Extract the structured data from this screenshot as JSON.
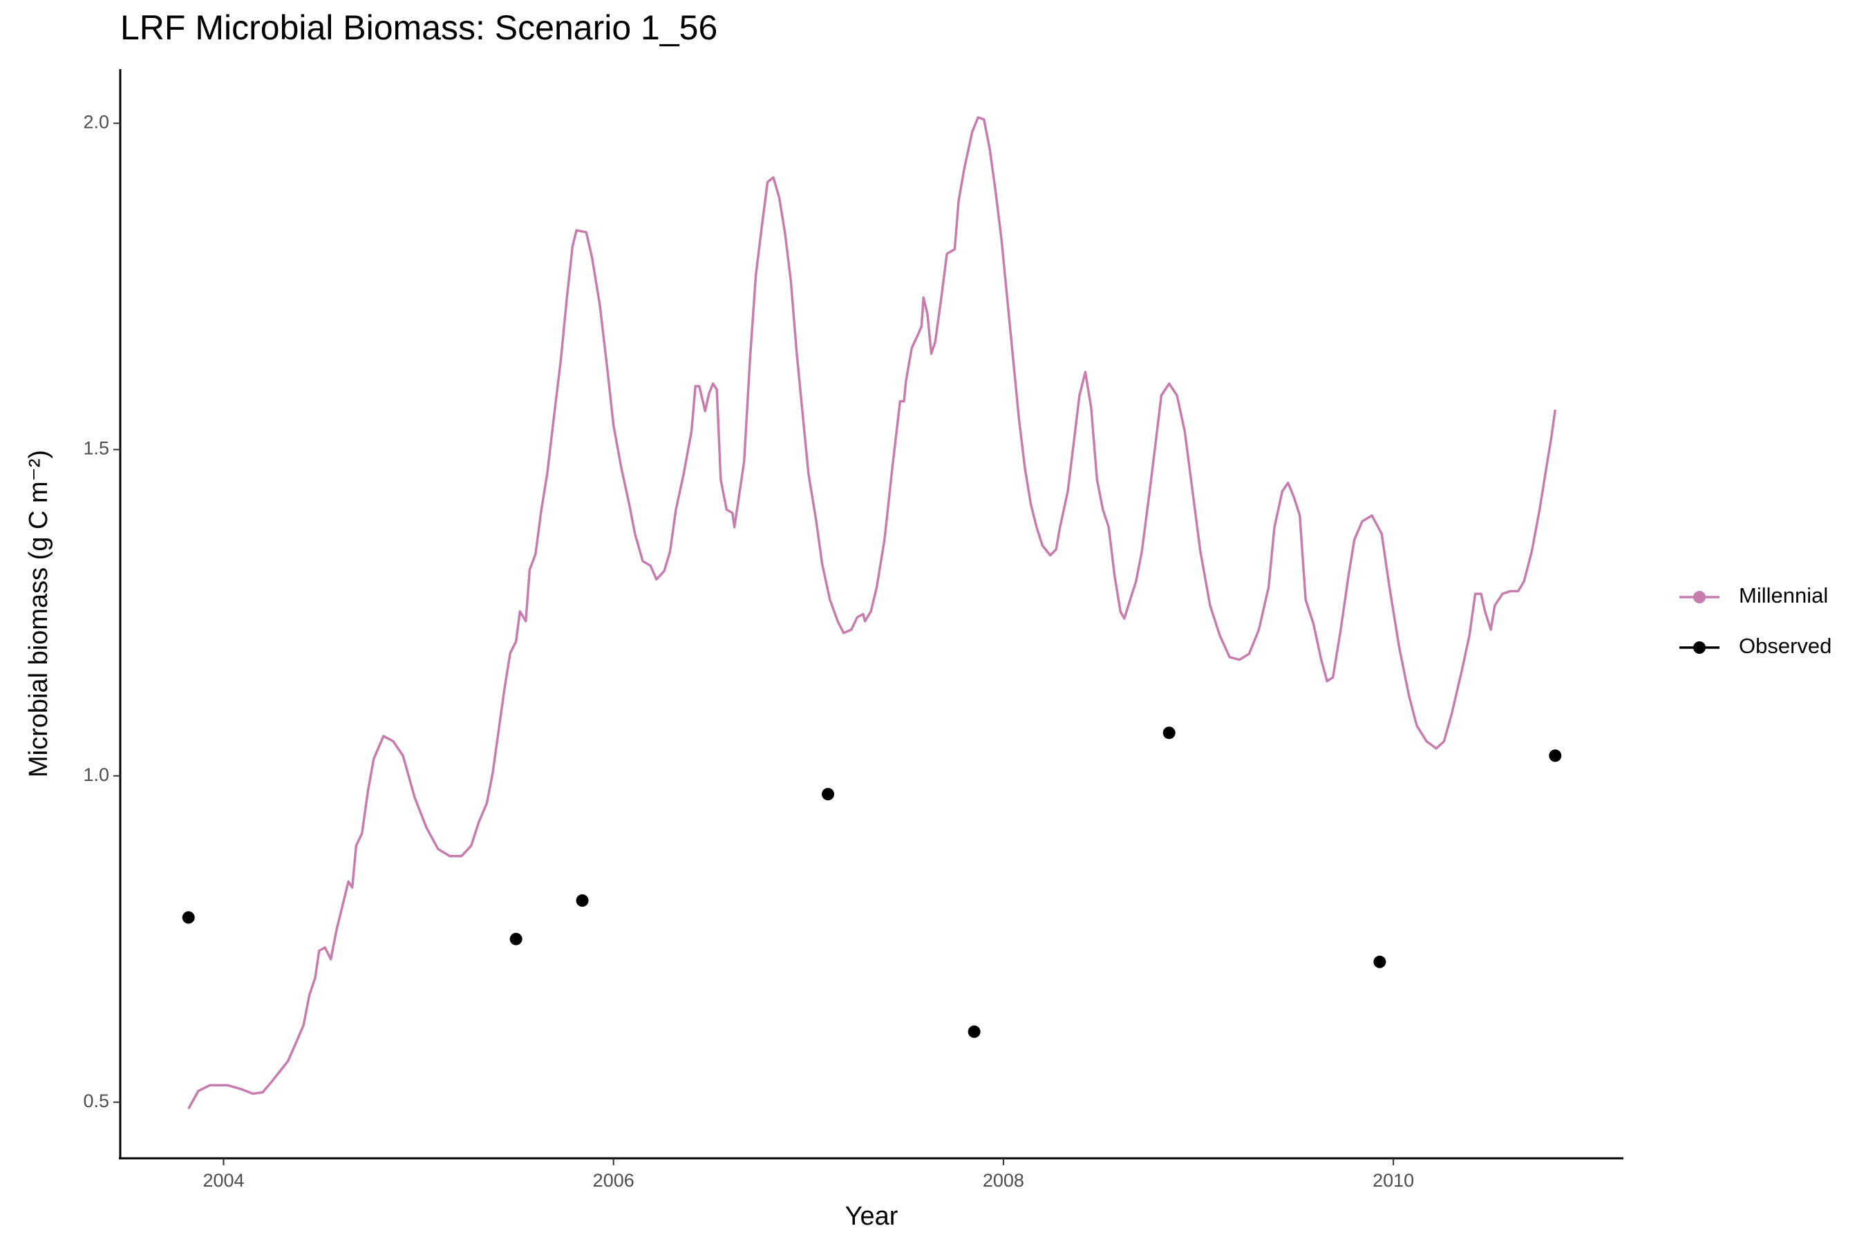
{
  "chart_data": {
    "type": "line",
    "title": "LRF Microbial Biomass: Scenario  1_56",
    "x_label": "Year",
    "y_label": "Microbial biomass (g C m⁻²)",
    "xlim": [
      2003.47,
      2011.18
    ],
    "ylim": [
      0.414,
      2.083
    ],
    "xticks": [
      2004,
      2006,
      2008,
      2010
    ],
    "yticks": [
      0.5,
      {
        "value": 1,
        "label": "1.0"
      },
      1.5,
      {
        "value": 2,
        "label": "2.0"
      }
    ],
    "grid": false,
    "legend": "right",
    "series": [
      {
        "name": "Millennial",
        "color": "#c77cae",
        "mode": "line",
        "x": [
          2003.82,
          2003.87,
          2003.93,
          2004.02,
          2004.09,
          2004.15,
          2004.2,
          2004.24,
          2004.28,
          2004.33,
          2004.37,
          2004.41,
          2004.44,
          2004.47,
          2004.49,
          2004.52,
          2004.55,
          2004.58,
          2004.61,
          2004.64,
          2004.66,
          2004.68,
          2004.71,
          2004.74,
          2004.77,
          2004.82,
          2004.87,
          2004.92,
          2004.98,
          2005.04,
          2005.1,
          2005.16,
          2005.22,
          2005.27,
          2005.31,
          2005.35,
          2005.38,
          2005.41,
          2005.44,
          2005.47,
          2005.5,
          2005.52,
          2005.55,
          2005.57,
          2005.6,
          2005.63,
          2005.66,
          2005.7,
          2005.73,
          2005.76,
          2005.79,
          2005.81,
          2005.86,
          2005.89,
          2005.93,
          2005.97,
          2006.0,
          2006.04,
          2006.08,
          2006.11,
          2006.15,
          2006.19,
          2006.22,
          2006.26,
          2006.29,
          2006.32,
          2006.36,
          2006.4,
          2006.42,
          2006.44,
          2006.47,
          2006.49,
          2006.51,
          2006.53,
          2006.55,
          2006.58,
          2006.61,
          2006.62,
          2006.64,
          2006.67,
          2006.7,
          2006.73,
          2006.76,
          2006.79,
          2006.82,
          2006.85,
          2006.88,
          2006.91,
          2006.94,
          2006.97,
          2007.0,
          2007.04,
          2007.07,
          2007.11,
          2007.15,
          2007.18,
          2007.22,
          2007.25,
          2007.28,
          2007.29,
          2007.32,
          2007.35,
          2007.39,
          2007.43,
          2007.47,
          2007.49,
          2007.5,
          2007.53,
          2007.56,
          2007.58,
          2007.59,
          2007.61,
          2007.63,
          2007.65,
          2007.68,
          2007.71,
          2007.75,
          2007.77,
          2007.8,
          2007.84,
          2007.87,
          2007.9,
          2007.93,
          2007.96,
          2007.99,
          2008.02,
          2008.05,
          2008.08,
          2008.11,
          2008.14,
          2008.17,
          2008.2,
          2008.24,
          2008.27,
          2008.29,
          2008.33,
          2008.36,
          2008.39,
          2008.42,
          2008.45,
          2008.48,
          2008.51,
          2008.54,
          2008.57,
          2008.6,
          2008.62,
          2008.65,
          2008.68,
          2008.71,
          2008.75,
          2008.78,
          2008.81,
          2008.85,
          2008.89,
          2008.93,
          2008.97,
          2009.01,
          2009.06,
          2009.11,
          2009.16,
          2009.21,
          2009.26,
          2009.31,
          2009.36,
          2009.39,
          2009.43,
          2009.46,
          2009.49,
          2009.52,
          2009.55,
          2009.59,
          2009.63,
          2009.66,
          2009.69,
          2009.73,
          2009.77,
          2009.8,
          2009.84,
          2009.89,
          2009.94,
          2009.98,
          2010.03,
          2010.08,
          2010.12,
          2010.17,
          2010.22,
          2010.26,
          2010.3,
          2010.35,
          2010.39,
          2010.42,
          2010.45,
          2010.47,
          2010.5,
          2010.52,
          2010.56,
          2010.6,
          2010.64,
          2010.67,
          2010.71,
          2010.75,
          2010.79,
          2010.81,
          2010.83
        ],
        "values": [
          0.49,
          0.517,
          0.526,
          0.526,
          0.52,
          0.513,
          0.515,
          0.529,
          0.544,
          0.563,
          0.59,
          0.618,
          0.664,
          0.691,
          0.732,
          0.737,
          0.719,
          0.765,
          0.801,
          0.838,
          0.829,
          0.893,
          0.912,
          0.976,
          1.026,
          1.061,
          1.053,
          1.031,
          0.967,
          0.921,
          0.888,
          0.877,
          0.877,
          0.893,
          0.93,
          0.958,
          1.004,
          1.068,
          1.132,
          1.188,
          1.206,
          1.252,
          1.237,
          1.316,
          1.34,
          1.408,
          1.463,
          1.564,
          1.638,
          1.73,
          1.812,
          1.836,
          1.833,
          1.794,
          1.721,
          1.619,
          1.537,
          1.472,
          1.417,
          1.371,
          1.329,
          1.322,
          1.301,
          1.314,
          1.344,
          1.408,
          1.463,
          1.528,
          1.597,
          1.597,
          1.559,
          1.586,
          1.601,
          1.592,
          1.454,
          1.408,
          1.403,
          1.381,
          1.421,
          1.482,
          1.638,
          1.767,
          1.84,
          1.91,
          1.917,
          1.886,
          1.831,
          1.757,
          1.647,
          1.555,
          1.463,
          1.39,
          1.325,
          1.27,
          1.237,
          1.219,
          1.224,
          1.243,
          1.248,
          1.237,
          1.252,
          1.289,
          1.362,
          1.472,
          1.574,
          1.574,
          1.605,
          1.656,
          1.675,
          1.689,
          1.733,
          1.708,
          1.647,
          1.665,
          1.73,
          1.8,
          1.807,
          1.881,
          1.932,
          1.987,
          2.009,
          2.006,
          1.96,
          1.895,
          1.822,
          1.73,
          1.638,
          1.546,
          1.472,
          1.417,
          1.381,
          1.353,
          1.338,
          1.347,
          1.381,
          1.436,
          1.509,
          1.583,
          1.619,
          1.564,
          1.454,
          1.408,
          1.381,
          1.307,
          1.252,
          1.241,
          1.27,
          1.298,
          1.344,
          1.436,
          1.509,
          1.583,
          1.601,
          1.583,
          1.528,
          1.436,
          1.344,
          1.261,
          1.215,
          1.182,
          1.178,
          1.187,
          1.224,
          1.289,
          1.381,
          1.436,
          1.449,
          1.427,
          1.399,
          1.27,
          1.233,
          1.178,
          1.145,
          1.151,
          1.224,
          1.307,
          1.362,
          1.39,
          1.399,
          1.371,
          1.289,
          1.197,
          1.123,
          1.077,
          1.053,
          1.042,
          1.053,
          1.096,
          1.16,
          1.215,
          1.279,
          1.279,
          1.252,
          1.224,
          1.261,
          1.279,
          1.283,
          1.283,
          1.298,
          1.344,
          1.408,
          1.482,
          1.518,
          1.561
        ]
      },
      {
        "name": "Observed",
        "color": "#000000",
        "mode": "points",
        "x": [
          2003.82,
          2005.5,
          2005.84,
          2007.1,
          2007.85,
          2008.85,
          2009.93,
          2010.83
        ],
        "values": [
          0.783,
          0.75,
          0.809,
          0.972,
          0.608,
          1.066,
          0.715,
          1.031
        ]
      }
    ]
  }
}
